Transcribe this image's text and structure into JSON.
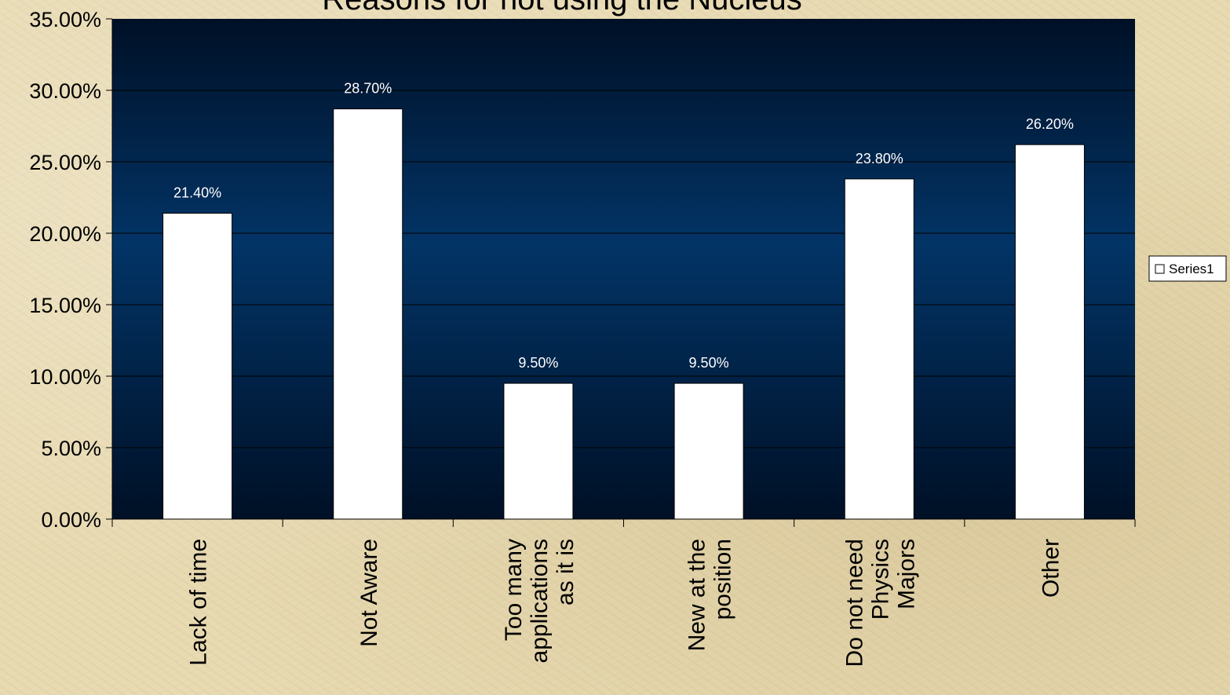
{
  "chart_data": {
    "type": "bar",
    "title": "Reasons for not using the Nucleus",
    "categories": [
      [
        "Lack of time"
      ],
      [
        "Not Aware"
      ],
      [
        "Too many",
        "applications",
        "as it is"
      ],
      [
        "New at the",
        "position"
      ],
      [
        "Do not need",
        "Physics",
        "Majors"
      ],
      [
        "Other"
      ]
    ],
    "series": [
      {
        "name": "Series1",
        "values": [
          21.4,
          28.7,
          9.5,
          9.5,
          23.8,
          26.2
        ]
      }
    ],
    "data_labels": [
      "21.40%",
      "28.70%",
      "9.50%",
      "9.50%",
      "23.80%",
      "26.20%"
    ],
    "y_ticks": [
      "0.00%",
      "5.00%",
      "10.00%",
      "15.00%",
      "20.00%",
      "25.00%",
      "30.00%",
      "35.00%"
    ],
    "ylim": [
      0,
      35
    ],
    "grid": true,
    "legend_position": "right",
    "colors": {
      "bar_fill": "#ffffff",
      "bar_stroke": "#000000",
      "plot_dark": "#001026",
      "plot_mid": "#023466",
      "gridline": "#000000"
    }
  }
}
